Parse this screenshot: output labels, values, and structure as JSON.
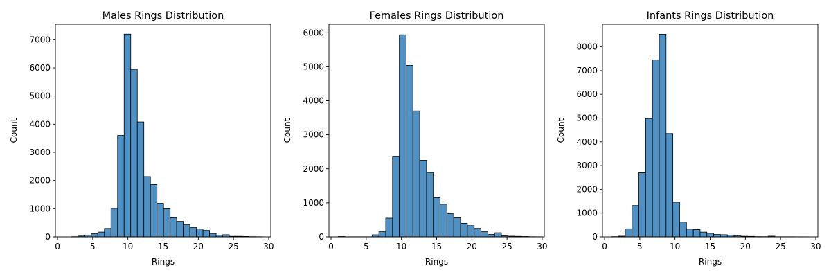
{
  "chart_data": [
    {
      "type": "bar",
      "title": "Males Rings Distribution",
      "xlabel": "Rings",
      "ylabel": "Count",
      "xlim": [
        -0.3,
        30.3
      ],
      "ylim": [
        0,
        7550
      ],
      "xticks": [
        0,
        5,
        10,
        15,
        20,
        25,
        30
      ],
      "yticks": [
        0,
        1000,
        2000,
        3000,
        4000,
        5000,
        6000,
        7000
      ],
      "bin_start": 2,
      "bin_width": 0.9333,
      "color": "#5190c2",
      "values": [
        8,
        30,
        60,
        110,
        170,
        300,
        1010,
        3600,
        7200,
        5950,
        4080,
        2140,
        1860,
        1190,
        1000,
        680,
        550,
        440,
        330,
        280,
        230,
        120,
        60,
        75,
        20,
        20,
        15,
        8,
        5
      ]
    },
    {
      "type": "bar",
      "title": "Females Rings Distribution",
      "xlabel": "Rings",
      "ylabel": "Count",
      "xlim": [
        -0.3,
        30.3
      ],
      "ylim": [
        0,
        6250
      ],
      "xticks": [
        0,
        5,
        10,
        15,
        20,
        25,
        30
      ],
      "yticks": [
        0,
        1000,
        2000,
        3000,
        4000,
        5000,
        6000
      ],
      "bin_start": 1,
      "bin_width": 0.9667,
      "color": "#5190c2",
      "values": [
        10,
        3,
        3,
        3,
        3,
        60,
        150,
        550,
        2370,
        5940,
        5040,
        3700,
        2250,
        1890,
        1150,
        960,
        680,
        560,
        400,
        330,
        250,
        150,
        70,
        120,
        30,
        20,
        15,
        10,
        5,
        3
      ]
    },
    {
      "type": "bar",
      "title": "Infants Rings Distribution",
      "xlabel": "Rings",
      "ylabel": "Count",
      "xlim": [
        -0.3,
        30.3
      ],
      "ylim": [
        0,
        8950
      ],
      "xticks": [
        0,
        5,
        10,
        15,
        20,
        25,
        30
      ],
      "yticks": [
        0,
        1000,
        2000,
        3000,
        4000,
        5000,
        6000,
        7000,
        8000
      ],
      "bin_start": 1,
      "bin_width": 0.9667,
      "color": "#5190c2",
      "values": [
        10,
        30,
        340,
        1320,
        2700,
        4980,
        7450,
        8530,
        4350,
        1460,
        620,
        330,
        310,
        200,
        150,
        100,
        90,
        70,
        40,
        25,
        20,
        10,
        8,
        30,
        5,
        5,
        5,
        3,
        3
      ]
    }
  ]
}
